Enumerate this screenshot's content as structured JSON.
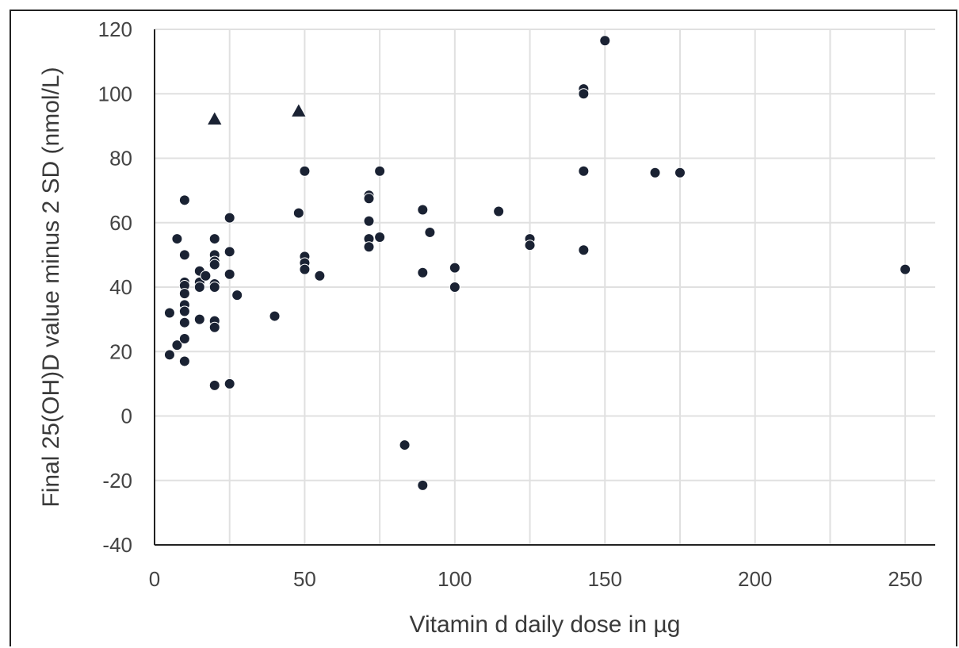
{
  "chart_data": {
    "type": "scatter",
    "title": "",
    "xlabel": "Vitamin d daily dose in µg",
    "ylabel": "Final 25(OH)D value minus 2 SD (nmol/L)",
    "xlim": [
      0,
      260
    ],
    "ylim": [
      -40,
      120
    ],
    "xticks": [
      0,
      50,
      100,
      150,
      200,
      250
    ],
    "yticks": [
      -40,
      -20,
      0,
      20,
      40,
      60,
      80,
      100,
      120
    ],
    "x_gridlines": [
      0,
      25,
      50,
      75,
      100,
      125,
      150,
      175,
      200,
      225,
      250
    ],
    "grid": true,
    "legend": "none",
    "series": [
      {
        "marker": "circle",
        "color": "#1a2233",
        "points": [
          [
            5,
            32
          ],
          [
            5,
            19
          ],
          [
            7.5,
            55
          ],
          [
            7.5,
            22
          ],
          [
            10,
            67
          ],
          [
            10,
            50
          ],
          [
            10,
            41.5
          ],
          [
            10,
            40.5
          ],
          [
            10,
            38
          ],
          [
            10,
            34.5
          ],
          [
            10,
            32.5
          ],
          [
            10,
            29
          ],
          [
            10,
            24
          ],
          [
            10,
            17
          ],
          [
            15,
            45
          ],
          [
            15,
            41.5
          ],
          [
            15,
            40
          ],
          [
            15,
            30
          ],
          [
            17,
            43.5
          ],
          [
            20,
            55
          ],
          [
            20,
            50
          ],
          [
            20,
            48
          ],
          [
            20,
            47
          ],
          [
            20,
            41
          ],
          [
            20,
            40
          ],
          [
            20,
            29.5
          ],
          [
            20,
            27.5
          ],
          [
            20,
            9.5
          ],
          [
            25,
            61.5
          ],
          [
            25,
            51
          ],
          [
            25,
            44
          ],
          [
            25,
            10
          ],
          [
            27.5,
            37.5
          ],
          [
            40,
            31
          ],
          [
            48,
            63
          ],
          [
            50,
            76
          ],
          [
            50,
            49.5
          ],
          [
            50,
            47.5
          ],
          [
            50,
            45.5
          ],
          [
            55,
            43.5
          ],
          [
            71.4,
            68.5
          ],
          [
            71.4,
            67.5
          ],
          [
            71.4,
            60.5
          ],
          [
            71.4,
            55
          ],
          [
            71.4,
            52.5
          ],
          [
            75,
            76
          ],
          [
            75,
            55.5
          ],
          [
            83.3,
            -9
          ],
          [
            89.3,
            64
          ],
          [
            89.3,
            44.5
          ],
          [
            89.3,
            -21.5
          ],
          [
            91.7,
            57
          ],
          [
            100,
            46
          ],
          [
            100,
            40
          ],
          [
            114.6,
            63.5
          ],
          [
            125,
            55
          ],
          [
            125,
            53
          ],
          [
            142.9,
            101.5
          ],
          [
            142.9,
            100
          ],
          [
            142.9,
            76
          ],
          [
            142.9,
            51.5
          ],
          [
            150,
            116.5
          ],
          [
            166.7,
            75.5
          ],
          [
            175,
            75.5
          ],
          [
            250,
            45.5
          ]
        ]
      },
      {
        "marker": "triangle",
        "color": "#1a2233",
        "points": [
          [
            20,
            92
          ],
          [
            48,
            94.5
          ]
        ]
      }
    ]
  }
}
